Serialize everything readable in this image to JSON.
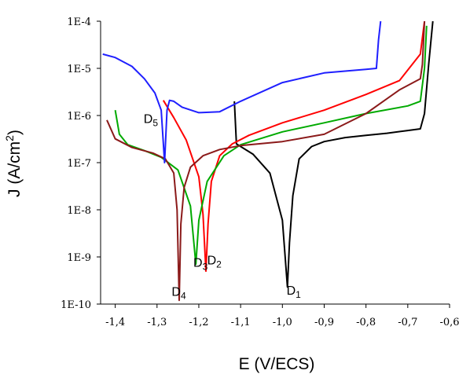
{
  "chart_data": {
    "type": "line",
    "title": "",
    "xlabel": "E (V/ECS)",
    "ylabel_main": "J (A/cm",
    "ylabel_sup": "2",
    "ylabel_close": ")",
    "y_scale": "log",
    "xlim": [
      -1.435,
      -0.6
    ],
    "ylim": [
      1e-10,
      0.0001
    ],
    "x_ticks": [
      -1.4,
      -1.3,
      -1.2,
      -1.1,
      -1.0,
      -0.9,
      -0.8,
      -0.7,
      -0.6
    ],
    "x_tick_labels": [
      "-1,4",
      "-1,3",
      "-1,2",
      "-1,1",
      "-1,0",
      "-0,9",
      "-0,8",
      "-0,7",
      "-0,6"
    ],
    "y_ticks": [
      1e-10,
      1e-09,
      1e-08,
      1e-07,
      1e-06,
      1e-05,
      0.0001
    ],
    "y_tick_labels": [
      "1E-10",
      "1E-9",
      "1E-8",
      "1E-7",
      "1E-6",
      "1E-5",
      "1E-4"
    ],
    "grid": false,
    "legend": "none",
    "series": [
      {
        "label": "D",
        "sub": "1",
        "color": "#000000",
        "label_at": [
          -0.99,
          1.6e-10
        ],
        "points": [
          [
            -1.115,
            2e-06
          ],
          [
            -1.11,
            2.5e-07
          ],
          [
            -1.07,
            1.5e-07
          ],
          [
            -1.03,
            6e-08
          ],
          [
            -1.0,
            6e-09
          ],
          [
            -0.988,
            2.3e-10
          ],
          [
            -0.983,
            2e-09
          ],
          [
            -0.975,
            2e-08
          ],
          [
            -0.96,
            1.2e-07
          ],
          [
            -0.93,
            2.2e-07
          ],
          [
            -0.9,
            2.8e-07
          ],
          [
            -0.85,
            3.4e-07
          ],
          [
            -0.8,
            3.8e-07
          ],
          [
            -0.75,
            4.2e-07
          ],
          [
            -0.7,
            4.8e-07
          ],
          [
            -0.67,
            5.2e-07
          ],
          [
            -0.66,
            1.1e-06
          ],
          [
            -0.65,
            1.2e-05
          ],
          [
            -0.64,
            0.0001
          ]
        ]
      },
      {
        "label": "D",
        "sub": "2",
        "color": "#ff0000",
        "label_at": [
          -1.18,
          7e-10
        ],
        "points": [
          [
            -1.285,
            2.1e-06
          ],
          [
            -1.26,
            9e-07
          ],
          [
            -1.23,
            3e-07
          ],
          [
            -1.2,
            5e-08
          ],
          [
            -1.19,
            8e-09
          ],
          [
            -1.183,
            5e-10
          ],
          [
            -1.178,
            5e-09
          ],
          [
            -1.17,
            4e-08
          ],
          [
            -1.15,
            1.4e-07
          ],
          [
            -1.12,
            2.5e-07
          ],
          [
            -1.08,
            3.8e-07
          ],
          [
            -1.0,
            7e-07
          ],
          [
            -0.9,
            1.3e-06
          ],
          [
            -0.8,
            2.8e-06
          ],
          [
            -0.72,
            5.5e-06
          ],
          [
            -0.67,
            2e-05
          ],
          [
            -0.66,
            0.0001
          ]
        ]
      },
      {
        "label": "D",
        "sub": "3",
        "color": "#00aa00",
        "label_at": [
          -1.213,
          6.2e-10
        ],
        "points": [
          [
            -1.4,
            1.3e-06
          ],
          [
            -1.39,
            4e-07
          ],
          [
            -1.37,
            2.4e-07
          ],
          [
            -1.33,
            1.8e-07
          ],
          [
            -1.29,
            1.3e-07
          ],
          [
            -1.25,
            7e-08
          ],
          [
            -1.22,
            1.2e-08
          ],
          [
            -1.207,
            7e-10
          ],
          [
            -1.2,
            6e-09
          ],
          [
            -1.18,
            4e-08
          ],
          [
            -1.14,
            1.4e-07
          ],
          [
            -1.1,
            2.4e-07
          ],
          [
            -1.0,
            4.5e-07
          ],
          [
            -0.9,
            7e-07
          ],
          [
            -0.8,
            1.1e-06
          ],
          [
            -0.7,
            1.6e-06
          ],
          [
            -0.67,
            2e-06
          ],
          [
            -0.66,
            1e-05
          ],
          [
            -0.655,
            8e-05
          ]
        ]
      },
      {
        "label": "D",
        "sub": "4",
        "color": "#8b1a1a",
        "label_at": [
          -1.265,
          1.5e-10
        ],
        "points": [
          [
            -1.42,
            8e-07
          ],
          [
            -1.4,
            3.2e-07
          ],
          [
            -1.36,
            2.1e-07
          ],
          [
            -1.31,
            1.6e-07
          ],
          [
            -1.28,
            1.2e-07
          ],
          [
            -1.26,
            6e-08
          ],
          [
            -1.252,
            1e-08
          ],
          [
            -1.247,
            1.2e-10
          ],
          [
            -1.243,
            5e-09
          ],
          [
            -1.235,
            3e-08
          ],
          [
            -1.22,
            8e-08
          ],
          [
            -1.19,
            1.4e-07
          ],
          [
            -1.15,
            1.9e-07
          ],
          [
            -1.1,
            2.3e-07
          ],
          [
            -1.0,
            2.8e-07
          ],
          [
            -0.9,
            4e-07
          ],
          [
            -0.8,
            1.1e-06
          ],
          [
            -0.72,
            3.5e-06
          ],
          [
            -0.67,
            6e-06
          ],
          [
            -0.665,
            1.2e-05
          ],
          [
            -0.66,
            0.0001
          ]
        ]
      },
      {
        "label": "D",
        "sub": "5",
        "color": "#1f1fff",
        "label_at": [
          -1.332,
          7e-07
        ],
        "points": [
          [
            -1.43,
            2e-05
          ],
          [
            -1.4,
            1.7e-05
          ],
          [
            -1.36,
            1.1e-05
          ],
          [
            -1.33,
            6e-06
          ],
          [
            -1.305,
            3e-06
          ],
          [
            -1.29,
            1.3e-06
          ],
          [
            -1.282,
            1e-07
          ],
          [
            -1.276,
            1.3e-06
          ],
          [
            -1.27,
            2.1e-06
          ],
          [
            -1.26,
            2e-06
          ],
          [
            -1.24,
            1.5e-06
          ],
          [
            -1.2,
            1.15e-06
          ],
          [
            -1.15,
            1.2e-06
          ],
          [
            -1.1,
            2e-06
          ],
          [
            -1.0,
            5e-06
          ],
          [
            -0.9,
            8e-06
          ],
          [
            -0.8,
            9.5e-06
          ],
          [
            -0.775,
            1e-05
          ],
          [
            -0.77,
            4e-05
          ],
          [
            -0.765,
            0.0001
          ]
        ]
      }
    ]
  }
}
